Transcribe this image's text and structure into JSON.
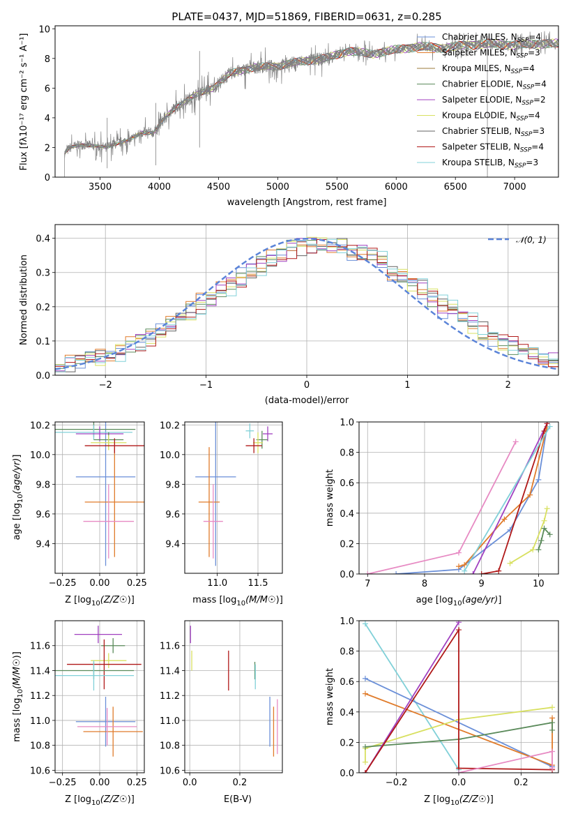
{
  "figure": {
    "title": "PLATE=0437, MJD=51869, FIBERID=0631, z=0.285"
  },
  "chart_data": [
    {
      "type": "line",
      "id": "spectrum",
      "xlabel": "wavelength [Angstrom, rest frame]",
      "ylabel": "Flux [fλ10⁻¹⁷ erg cm⁻² s⁻¹ A⁻¹]",
      "xlim": [
        3120,
        7370
      ],
      "ylim": [
        0,
        10.2
      ],
      "xticks": [
        3500,
        4000,
        4500,
        5000,
        5500,
        6000,
        6500,
        7000
      ],
      "yticks": [
        0,
        2,
        4,
        6,
        8,
        10
      ],
      "grid": false,
      "legend_position": "top-right",
      "data_color": "#808080",
      "data_envelope_x": [
        3200,
        3250,
        3350,
        3450,
        3550,
        3650,
        3750,
        3850,
        3950,
        4050,
        4150,
        4300,
        4450,
        4600,
        4800,
        5000,
        5200,
        5400,
        5600,
        5800,
        6000,
        6200,
        6400,
        6600,
        6800,
        7000,
        7200,
        7370
      ],
      "data_envelope_y": [
        1.6,
        2.0,
        2.2,
        2.1,
        2.0,
        2.3,
        2.5,
        3.0,
        3.0,
        4.0,
        4.8,
        5.5,
        6.0,
        7.0,
        7.4,
        7.5,
        7.8,
        8.0,
        8.5,
        8.3,
        8.6,
        8.8,
        8.7,
        8.9,
        9.0,
        8.9,
        9.0,
        9.0
      ],
      "series": [
        {
          "name": "Chabrier MILES, N_SSP=4",
          "label_main": "Chabrier MILES, N",
          "label_sub": "SSP",
          "label_tail": "=4",
          "color": "#6a8fd8"
        },
        {
          "name": "Salpeter MILES, N_SSP=3",
          "label_main": "Salpeter MILES, N",
          "label_sub": "SSP",
          "label_tail": "=3",
          "color": "#e07b2a"
        },
        {
          "name": "Kroupa MILES, N_SSP=4",
          "label_main": "Kroupa MILES, N",
          "label_sub": "SSP",
          "label_tail": "=4",
          "color": "#9b7a3a"
        },
        {
          "name": "Chabrier ELODIE, N_SSP=4",
          "label_main": "Chabrier ELODIE, N",
          "label_sub": "SSP",
          "label_tail": "=4",
          "color": "#5a8a5a"
        },
        {
          "name": "Salpeter ELODIE, N_SSP=2",
          "label_main": "Salpeter ELODIE, N",
          "label_sub": "SSP",
          "label_tail": "=2",
          "color": "#a040c0"
        },
        {
          "name": "Kroupa ELODIE, N_SSP=4",
          "label_main": "Kroupa ELODIE, N",
          "label_sub": "SSP",
          "label_tail": "=4",
          "color": "#d8e060"
        },
        {
          "name": "Chabrier STELIB, N_SSP=3",
          "label_main": "Chabrier STELIB, N",
          "label_sub": "SSP",
          "label_tail": "=3",
          "color": "#606060"
        },
        {
          "name": "Salpeter STELIB, N_SSP=4",
          "label_main": "Salpeter STELIB, N",
          "label_sub": "SSP",
          "label_tail": "=4",
          "color": "#b01818"
        },
        {
          "name": "Kroupa STELIB, N_SSP=3",
          "label_main": "Kroupa STELIB, N",
          "label_sub": "SSP",
          "label_tail": "=3",
          "color": "#80d0d8"
        }
      ]
    },
    {
      "type": "step",
      "id": "residuals",
      "xlabel": "(data-model)/error",
      "ylabel": "Normed distribution",
      "xlim": [
        -2.5,
        2.5
      ],
      "ylim": [
        0,
        0.44
      ],
      "xticks": [
        -2,
        -1,
        0,
        1,
        2
      ],
      "xtick_labels": [
        "−2",
        "−1",
        "0",
        "1",
        "2"
      ],
      "yticks": [
        0.0,
        0.1,
        0.2,
        0.3,
        0.4
      ],
      "ytick_labels": [
        "0.0",
        "0.1",
        "0.2",
        "0.3",
        "0.4"
      ],
      "grid": true,
      "legend": "𝒩(0, 1)",
      "legend_position": "top-right",
      "gaussian_color": "#5b84d8",
      "bin_width": 0.1,
      "hist_colors": [
        "#6a8fd8",
        "#e07b2a",
        "#5a8a5a",
        "#a040c0",
        "#d8e060",
        "#606060",
        "#b01818",
        "#80d0d8"
      ]
    },
    {
      "type": "scatter",
      "id": "age-vs-Z",
      "xlabel": "Z [log10(Z/Z☉)]",
      "ylabel": "age [log10(age/yr)]",
      "xlim": [
        -0.3,
        0.3
      ],
      "ylim": [
        9.2,
        10.22
      ],
      "xticks": [
        -0.25,
        0.0,
        0.25
      ],
      "xtick_labels": [
        "−0.25",
        "0.00",
        "0.25"
      ],
      "yticks": [
        9.4,
        9.6,
        9.8,
        10.0,
        10.2
      ],
      "ytick_labels": [
        "9.4",
        "9.6",
        "9.8",
        "10.0",
        "10.2"
      ],
      "grid": true,
      "points": [
        {
          "x": 0.04,
          "y": 9.85,
          "xerr": 0.2,
          "yerr": 0.6,
          "color": "#6a8fd8"
        },
        {
          "x": 0.1,
          "y": 9.68,
          "xerr": 0.2,
          "yerr": 0.37,
          "color": "#e07b2a"
        },
        {
          "x": 0.06,
          "y": 9.55,
          "xerr": 0.17,
          "yerr": 0.25,
          "color": "#e78ac3"
        },
        {
          "x": -0.04,
          "y": 10.17,
          "xerr": 0.28,
          "yerr": 0.05,
          "color": "#5a8a5a"
        },
        {
          "x": -0.04,
          "y": 10.15,
          "xerr": 0.26,
          "yerr": 0.05,
          "color": "#80d0d8"
        },
        {
          "x": 0.0,
          "y": 10.14,
          "xerr": 0.16,
          "yerr": 0.05,
          "color": "#a040c0"
        },
        {
          "x": 0.06,
          "y": 10.1,
          "xerr": 0.1,
          "yerr": 0.05,
          "color": "#5a8a5a"
        },
        {
          "x": 0.06,
          "y": 10.08,
          "xerr": 0.12,
          "yerr": 0.05,
          "color": "#d8e060"
        },
        {
          "x": 0.1,
          "y": 10.06,
          "xerr": 0.2,
          "yerr": 0.05,
          "color": "#b01818"
        }
      ]
    },
    {
      "type": "scatter",
      "id": "age-vs-mass",
      "xlabel": "mass [log10(M/M☉)]",
      "xlim": [
        10.6,
        11.8
      ],
      "ylim": [
        9.2,
        10.22
      ],
      "xticks": [
        11.0,
        11.5
      ],
      "xtick_labels": [
        "11.0",
        "11.5"
      ],
      "yticks": [
        9.4,
        9.6,
        9.8,
        10.0,
        10.2
      ],
      "ytick_labels": [
        "9.4",
        "9.6",
        "9.8",
        "10.0",
        "10.2"
      ],
      "grid": true,
      "points": [
        {
          "x": 10.98,
          "y": 9.85,
          "xerr": 0.25,
          "yerr": 0.6,
          "color": "#6a8fd8"
        },
        {
          "x": 10.9,
          "y": 9.68,
          "xerr": 0.13,
          "yerr": 0.37,
          "color": "#e07b2a"
        },
        {
          "x": 10.95,
          "y": 9.55,
          "xerr": 0.12,
          "yerr": 0.25,
          "color": "#e78ac3"
        },
        {
          "x": 11.4,
          "y": 10.16,
          "xerr": 0.05,
          "yerr": 0.05,
          "color": "#80d0d8"
        },
        {
          "x": 11.62,
          "y": 10.14,
          "xerr": 0.06,
          "yerr": 0.05,
          "color": "#a040c0"
        },
        {
          "x": 11.55,
          "y": 10.1,
          "xerr": 0.07,
          "yerr": 0.06,
          "color": "#5a8a5a"
        },
        {
          "x": 11.5,
          "y": 10.08,
          "xerr": 0.06,
          "yerr": 0.07,
          "color": "#d8e060"
        },
        {
          "x": 11.45,
          "y": 10.06,
          "xerr": 0.1,
          "yerr": 0.05,
          "color": "#b01818"
        }
      ]
    },
    {
      "type": "line",
      "id": "massweight-vs-age",
      "xlabel": "age [log10(age/yr)]",
      "ylabel": "mass weight",
      "xlim": [
        6.85,
        10.35
      ],
      "ylim": [
        0,
        1.0
      ],
      "xticks": [
        7,
        8,
        9,
        10
      ],
      "yticks": [
        0.0,
        0.2,
        0.4,
        0.6,
        0.8,
        1.0
      ],
      "ytick_labels": [
        "0.0",
        "0.2",
        "0.4",
        "0.6",
        "0.8",
        "1.0"
      ],
      "grid": true,
      "series": [
        {
          "color": "#e78ac3",
          "x": [
            7.0,
            8.6,
            9.6
          ],
          "y": [
            0.0,
            0.14,
            0.87
          ]
        },
        {
          "color": "#6a8fd8",
          "x": [
            7.5,
            8.6,
            9.5,
            10.0,
            10.15
          ],
          "y": [
            0.0,
            0.03,
            0.29,
            0.62,
            0.97
          ]
        },
        {
          "color": "#e07b2a",
          "x": [
            8.6,
            8.7,
            9.4,
            9.85,
            10.15
          ],
          "y": [
            0.05,
            0.06,
            0.36,
            0.52,
            0.97
          ]
        },
        {
          "color": "#a040c0",
          "x": [
            8.85,
            10.15
          ],
          "y": [
            0.0,
            0.99
          ]
        },
        {
          "color": "#b01818",
          "x": [
            9.0,
            9.3,
            10.1,
            10.15
          ],
          "y": [
            0.0,
            0.02,
            0.94,
            0.99
          ]
        },
        {
          "color": "#80d0d8",
          "x": [
            8.7,
            10.2
          ],
          "y": [
            0.02,
            0.97
          ]
        },
        {
          "color": "#d8e060",
          "x": [
            9.5,
            9.9,
            10.1,
            10.15
          ],
          "y": [
            0.07,
            0.16,
            0.35,
            0.43
          ]
        },
        {
          "color": "#5a8a5a",
          "x": [
            10.0,
            10.05,
            10.1,
            10.2
          ],
          "y": [
            0.16,
            0.22,
            0.3,
            0.26
          ]
        }
      ]
    },
    {
      "type": "scatter",
      "id": "mass-vs-Z",
      "xlabel": "Z [log10(Z/Z☉)]",
      "ylabel": "mass [log10(M/M☉)]",
      "xlim": [
        -0.3,
        0.3
      ],
      "ylim": [
        10.58,
        11.8
      ],
      "xticks": [
        -0.25,
        0.0,
        0.25
      ],
      "xtick_labels": [
        "−0.25",
        "0.00",
        "0.25"
      ],
      "yticks": [
        10.6,
        10.8,
        11.0,
        11.2,
        11.4,
        11.6
      ],
      "ytick_labels": [
        "10.6",
        "10.8",
        "11.0",
        "11.2",
        "11.4",
        "11.6"
      ],
      "grid": true,
      "points": [
        {
          "x": -0.01,
          "y": 11.69,
          "xerr": 0.16,
          "yerr": 0.07,
          "color": "#a040c0"
        },
        {
          "x": 0.09,
          "y": 11.6,
          "xerr": 0.08,
          "yerr": 0.06,
          "color": "#5a8a5a"
        },
        {
          "x": 0.06,
          "y": 11.48,
          "xerr": 0.12,
          "yerr": 0.06,
          "color": "#d8e060"
        },
        {
          "x": 0.03,
          "y": 11.45,
          "xerr": 0.25,
          "yerr": 0.2,
          "color": "#b01818"
        },
        {
          "x": -0.04,
          "y": 11.4,
          "xerr": 0.27,
          "yerr": 0.07,
          "color": "#5a8a5a"
        },
        {
          "x": -0.04,
          "y": 11.36,
          "xerr": 0.27,
          "yerr": 0.12,
          "color": "#80d0d8"
        },
        {
          "x": 0.04,
          "y": 10.99,
          "xerr": 0.2,
          "yerr": 0.2,
          "color": "#6a8fd8"
        },
        {
          "x": 0.09,
          "y": 10.91,
          "xerr": 0.2,
          "yerr": 0.2,
          "color": "#e07b2a"
        },
        {
          "x": 0.05,
          "y": 10.95,
          "xerr": 0.2,
          "yerr": 0.15,
          "color": "#e78ac3"
        }
      ]
    },
    {
      "type": "scatter",
      "id": "mass-vs-ebv",
      "xlabel": "E(B-V)",
      "xlim": [
        -0.02,
        0.37
      ],
      "ylim": [
        10.58,
        11.8
      ],
      "xticks": [
        0.0,
        0.2
      ],
      "xtick_labels": [
        "0.0",
        "0.2"
      ],
      "yticks": [
        10.6,
        10.8,
        11.0,
        11.2,
        11.4,
        11.6
      ],
      "ytick_labels": [
        "10.6",
        "10.8",
        "11.0",
        "11.2",
        "11.4",
        "11.6"
      ],
      "grid": true,
      "points": [
        {
          "x": 0.003,
          "y": 11.69,
          "yerr": 0.07,
          "color": "#a040c0"
        },
        {
          "x": 0.008,
          "y": 11.48,
          "yerr": 0.08,
          "color": "#d8e060"
        },
        {
          "x": 0.155,
          "y": 11.4,
          "yerr": 0.16,
          "color": "#b01818"
        },
        {
          "x": 0.26,
          "y": 11.4,
          "yerr": 0.07,
          "color": "#5a8a5a"
        },
        {
          "x": 0.262,
          "y": 11.35,
          "yerr": 0.1,
          "color": "#80d0d8"
        },
        {
          "x": 0.32,
          "y": 10.99,
          "yerr": 0.2,
          "color": "#6a8fd8"
        },
        {
          "x": 0.335,
          "y": 10.91,
          "yerr": 0.2,
          "color": "#e07b2a"
        },
        {
          "x": 0.35,
          "y": 10.95,
          "yerr": 0.22,
          "color": "#e78ac3"
        }
      ]
    },
    {
      "type": "line",
      "id": "massweight-vs-Z",
      "xlabel": "Z [log10(Z/Z☉)]",
      "ylabel": "mass weight",
      "xlim": [
        -0.32,
        0.32
      ],
      "ylim": [
        0,
        1.0
      ],
      "xticks": [
        -0.2,
        0.0,
        0.2
      ],
      "xtick_labels": [
        "−0.2",
        "0.0",
        "0.2"
      ],
      "yticks": [
        0.0,
        0.2,
        0.4,
        0.6,
        0.8,
        1.0
      ],
      "ytick_labels": [
        "0.0",
        "0.2",
        "0.4",
        "0.6",
        "0.8",
        "1.0"
      ],
      "grid": true,
      "series": [
        {
          "color": "#80d0d8",
          "x": [
            -0.3,
            0.0,
            0.0
          ],
          "y": [
            0.98,
            0.02,
            0.0
          ]
        },
        {
          "color": "#6a8fd8",
          "x": [
            -0.3,
            0.3
          ],
          "y": [
            0.62,
            0.04
          ]
        },
        {
          "color": "#e07b2a",
          "x": [
            -0.3,
            0.3,
            0.3
          ],
          "y": [
            0.52,
            0.05,
            0.36
          ]
        },
        {
          "color": "#d8e060",
          "x": [
            -0.3,
            -0.3,
            0.0,
            0.3
          ],
          "y": [
            0.07,
            0.16,
            0.35,
            0.43
          ]
        },
        {
          "color": "#5a8a5a",
          "x": [
            -0.3,
            0.0,
            0.3,
            0.3
          ],
          "y": [
            0.17,
            0.22,
            0.33,
            0.28
          ]
        },
        {
          "color": "#a040c0",
          "x": [
            -0.3,
            0.0
          ],
          "y": [
            0.0,
            0.99
          ]
        },
        {
          "color": "#b01818",
          "x": [
            -0.3,
            0.0,
            0.0,
            0.3
          ],
          "y": [
            0.0,
            0.94,
            0.03,
            0.02
          ]
        },
        {
          "color": "#e78ac3",
          "x": [
            0.0,
            0.3,
            0.3
          ],
          "y": [
            0.0,
            0.14,
            0.03
          ]
        }
      ]
    }
  ]
}
